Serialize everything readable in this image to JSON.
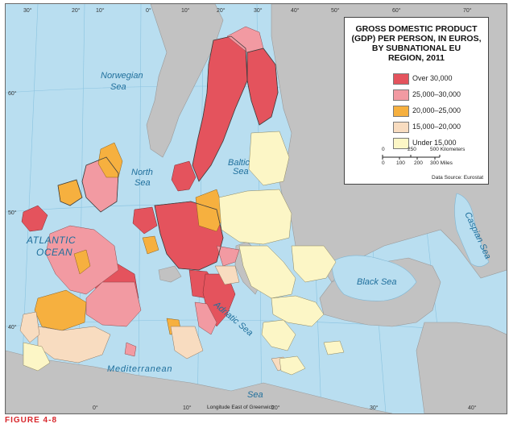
{
  "legend": {
    "title": "GROSS DOMESTIC PRODUCT (GDP) PER PERSON, IN EUROS, BY SUBNATIONAL EU REGION, 2011",
    "title_lines": [
      "GROSS DOMESTIC PRODUCT",
      "(GDP) PER PERSON, IN EUROS,",
      "BY SUBNATIONAL EU",
      "REGION, 2011"
    ],
    "classes": [
      {
        "label": "Over 30,000",
        "color": "#e4535d"
      },
      {
        "label": "25,000–30,000",
        "color": "#f29aa2"
      },
      {
        "label": "20,000–25,000",
        "color": "#f6b03f"
      },
      {
        "label": "15,000–20,000",
        "color": "#f8dcc0"
      },
      {
        "label": "Under 15,000",
        "color": "#fcf6c6"
      }
    ],
    "scale_km": [
      "0",
      "250",
      "500 Kilometers"
    ],
    "scale_mi": [
      "0",
      "100",
      "200",
      "300 Miles"
    ],
    "source": "Data Source: Eurostat"
  },
  "seas": {
    "norwegian": [
      "Norwegian",
      "Sea"
    ],
    "north": [
      "North",
      "Sea"
    ],
    "baltic": [
      "Baltic",
      "Sea"
    ],
    "atlantic": [
      "ATLANTIC",
      "OCEAN"
    ],
    "mediterranean": "Mediterranean",
    "black": "Black Sea",
    "caspian": "Caspian Sea",
    "adriatic": "Adriatic Sea",
    "sea_south": "Sea"
  },
  "graticule": {
    "top": [
      "30°",
      "20°",
      "10°",
      "0°",
      "10°",
      "20°",
      "30°",
      "40°",
      "50°",
      "60°",
      "70°"
    ],
    "bottom": [
      "0°",
      "10°",
      "20°",
      "30°",
      "40°"
    ],
    "left": [
      "60°",
      "50°",
      "40°"
    ],
    "longitude_note": "Longitude East of Greenwich"
  },
  "figure_label": "FIGURE 4-8",
  "colors": {
    "sea": "#b9def0",
    "non_eu_land": "#bfbfbf",
    "border": "#5a5a5a"
  }
}
